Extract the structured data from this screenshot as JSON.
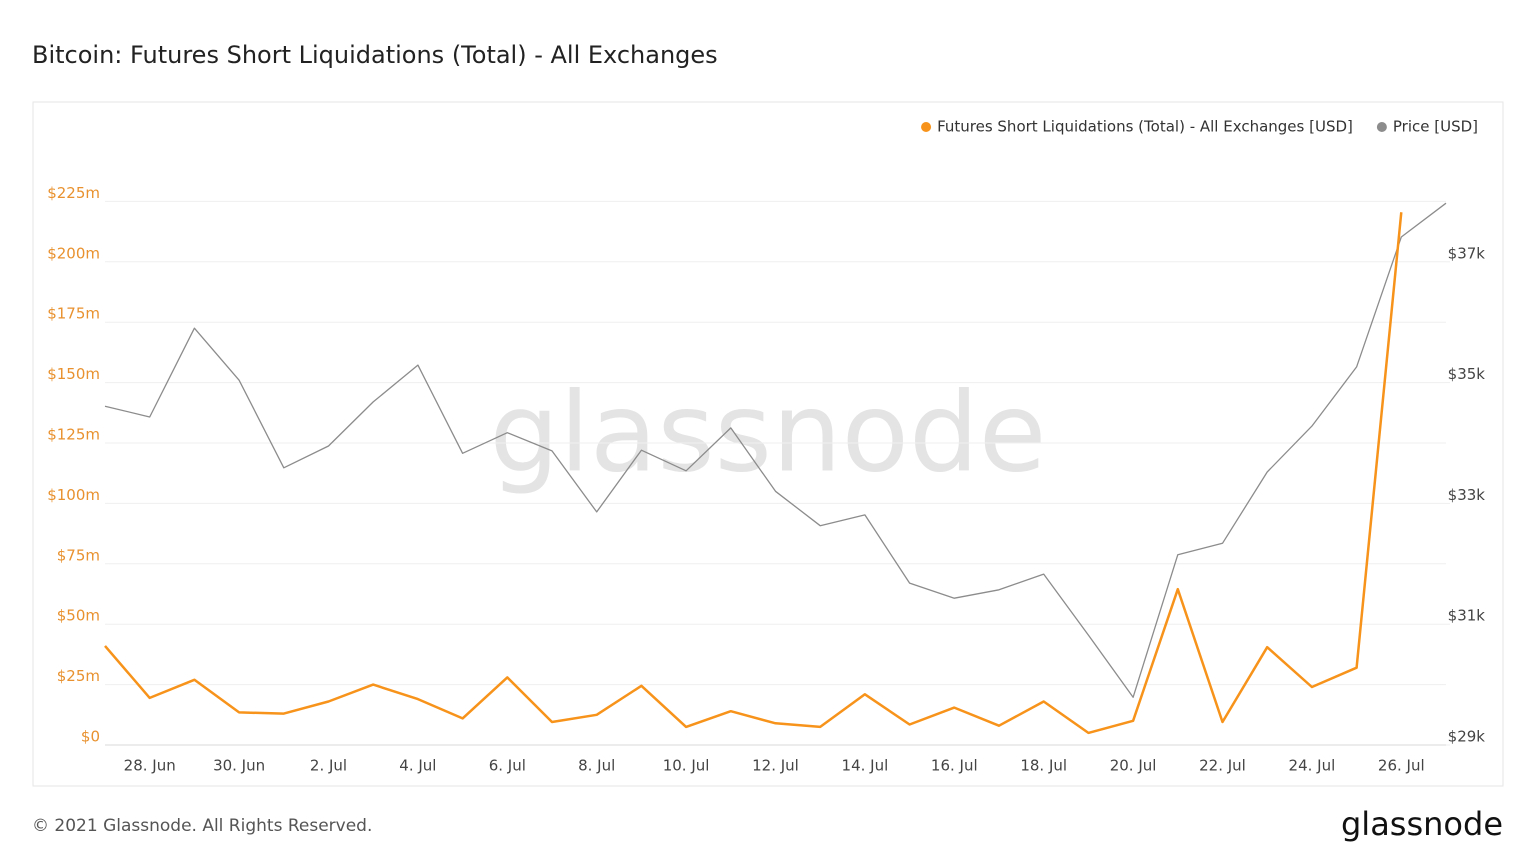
{
  "chart_data": {
    "type": "line",
    "title": "Bitcoin: Futures Short Liquidations (Total) - All Exchanges",
    "watermark": "glassnode",
    "footer": "© 2021 Glassnode. All Rights Reserved.",
    "brand": "glassnode",
    "categories": [
      null,
      "28. Jun",
      null,
      "30. Jun",
      null,
      "2. Jul",
      null,
      "4. Jul",
      null,
      "6. Jul",
      null,
      "8. Jul",
      null,
      "10. Jul",
      null,
      "12. Jul",
      null,
      "14. Jul",
      null,
      "16. Jul",
      null,
      "18. Jul",
      null,
      "20. Jul",
      null,
      "22. Jul",
      null,
      "24. Jul",
      null,
      "26. Jul",
      null
    ],
    "series": [
      {
        "name": "Futures Short Liquidations (Total) - All Exchanges [USD]",
        "color": "#f7931a",
        "axis": "y",
        "values": [
          41000000,
          19500000,
          27000000,
          13500000,
          13000000,
          18000000,
          25000000,
          19000000,
          11000000,
          28000000,
          9500000,
          12500000,
          24500000,
          7500000,
          14000000,
          9000000,
          7500000,
          21000000,
          8500000,
          15500000,
          8000000,
          18000000,
          5000000,
          10000000,
          64500000,
          9500000,
          40500000,
          24000000,
          32000000,
          220500000,
          null
        ]
      },
      {
        "name": "Price [USD]",
        "color": "#8c8c8c",
        "axis": "y2",
        "values": [
          34610,
          34430,
          35900,
          35040,
          33590,
          33950,
          34680,
          35290,
          33830,
          34170,
          33870,
          32860,
          33880,
          33540,
          34250,
          33200,
          32630,
          32810,
          31680,
          31430,
          31570,
          31830,
          30820,
          29790,
          32150,
          32340,
          33520,
          34280,
          35260,
          37410,
          37970
        ]
      }
    ],
    "ylim": [
      0,
      250000000
    ],
    "yticks": [
      {
        "value": 0,
        "label": "$0"
      },
      {
        "value": 25000000,
        "label": "$25m"
      },
      {
        "value": 50000000,
        "label": "$50m"
      },
      {
        "value": 75000000,
        "label": "$75m"
      },
      {
        "value": 100000000,
        "label": "$100m"
      },
      {
        "value": 125000000,
        "label": "$125m"
      },
      {
        "value": 150000000,
        "label": "$150m"
      },
      {
        "value": 175000000,
        "label": "$175m"
      },
      {
        "value": 200000000,
        "label": "$200m"
      },
      {
        "value": 225000000,
        "label": "$225m"
      }
    ],
    "y2lim": [
      29000,
      39000
    ],
    "y2ticks": [
      {
        "value": 29000,
        "label": "$29k"
      },
      {
        "value": 31000,
        "label": "$31k"
      },
      {
        "value": 33000,
        "label": "$33k"
      },
      {
        "value": 35000,
        "label": "$35k"
      },
      {
        "value": 37000,
        "label": "$37k"
      }
    ],
    "grid": true,
    "legend": "top-right"
  }
}
